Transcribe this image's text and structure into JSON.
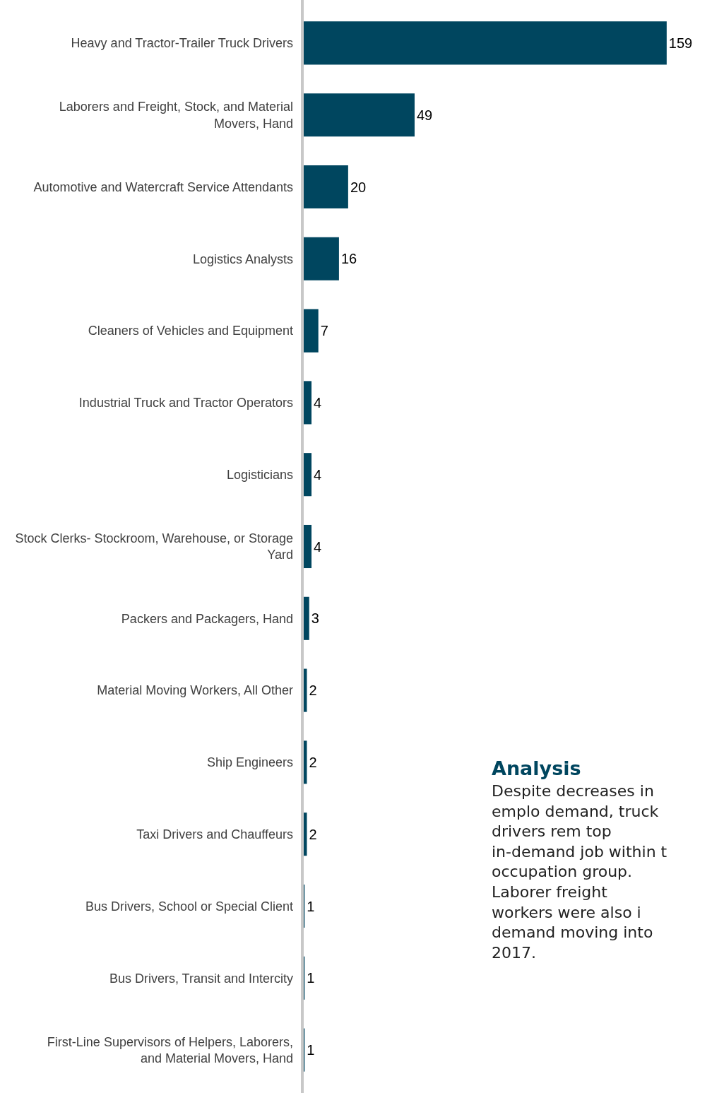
{
  "chart_data": {
    "type": "bar",
    "orientation": "horizontal",
    "data_labels": true,
    "grid": false,
    "legend": false,
    "tick_labels": "y",
    "color": "#00465f",
    "categories": [
      "Heavy and Tractor-Trailer Truck Drivers",
      "Laborers and Freight, Stock, and Material Movers, Hand",
      "Automotive and Watercraft Service Attendants",
      "Logistics Analysts",
      "Cleaners of Vehicles and Equipment",
      "Industrial Truck and Tractor Operators",
      "Logisticians",
      "Stock Clerks- Stockroom, Warehouse, or Storage Yard",
      "Packers and Packagers, Hand",
      "Material Moving Workers, All Other",
      "Ship Engineers",
      "Taxi Drivers and Chauffeurs",
      "Bus Drivers, School or Special Client",
      "Bus Drivers, Transit and Intercity",
      "First-Line Supervisors of Helpers, Laborers, and Material Movers, Hand"
    ],
    "values": [
      159,
      49,
      20,
      16,
      7,
      4,
      4,
      4,
      3,
      2,
      2,
      2,
      1,
      1,
      1
    ],
    "annotations": [
      "Analysis",
      "Despite decreases in emplo demand, truck drivers rem top in-demand job within t occupation group. Laborer freight workers were also i demand moving into 2017."
    ]
  }
}
